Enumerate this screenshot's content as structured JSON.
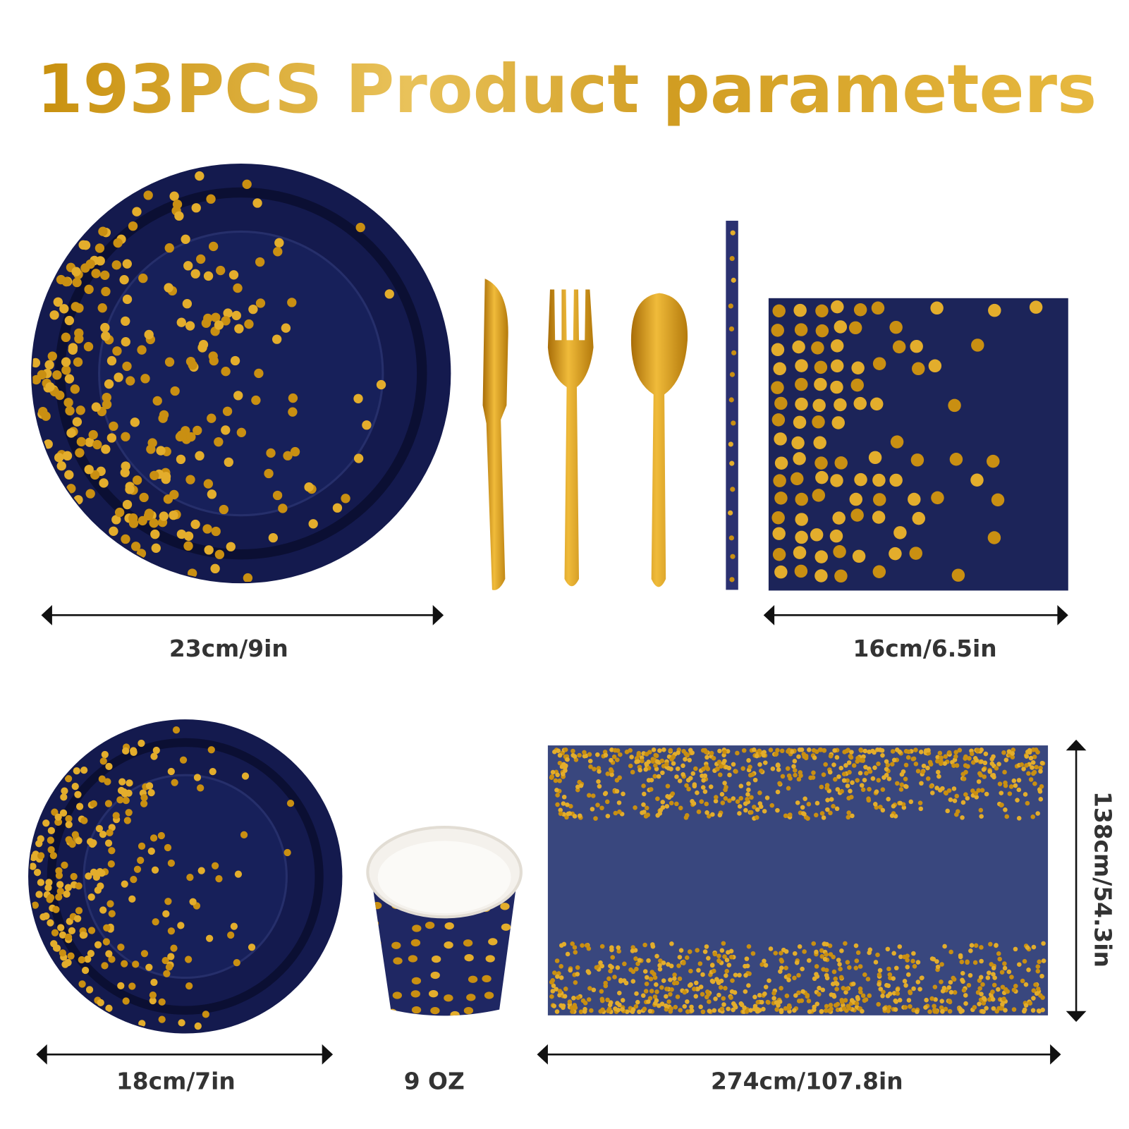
{
  "title": "193PCS Product parameters",
  "dimensions": {
    "large_plate": "23cm/9in",
    "napkin": "16cm/6.5in",
    "small_plate": "18cm/7in",
    "cup": "9 OZ",
    "tablecloth_length": "274cm/107.8in",
    "tablecloth_width": "138cm/54.3in"
  }
}
